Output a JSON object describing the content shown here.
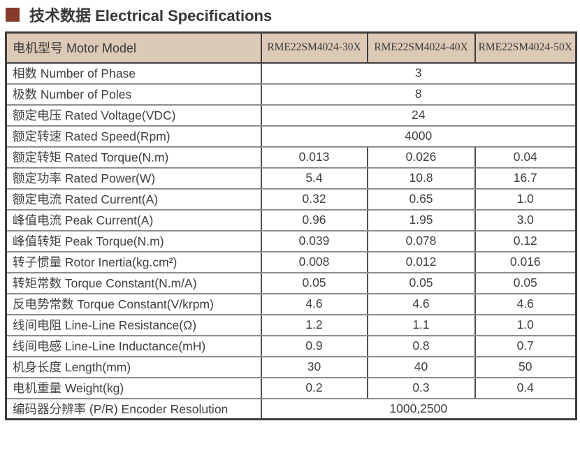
{
  "colors": {
    "bullet": "#873b2a",
    "header_bg": "#dccab7",
    "border_dark": "#3e3e3e",
    "border_gray": "#8d8d8d",
    "text": "#3e3e3e"
  },
  "title": {
    "text": "技术数据 Electrical Specifications"
  },
  "table": {
    "header": {
      "label": "电机型号 Motor Model",
      "models": [
        "RME22SM4024-30X",
        "RME22SM4024-40X",
        "RME22SM4024-50X"
      ]
    },
    "rows": [
      {
        "label": "相数 Number of Phase",
        "span": true,
        "values": [
          "3"
        ]
      },
      {
        "label": "极数 Number of Poles",
        "span": true,
        "values": [
          "8"
        ]
      },
      {
        "label": "额定电压 Rated Voltage(VDC)",
        "span": true,
        "values": [
          "24"
        ]
      },
      {
        "label": "额定转速 Rated Speed(Rpm)",
        "span": true,
        "values": [
          "4000"
        ]
      },
      {
        "label": "额定转矩 Rated Torque(N.m)",
        "span": false,
        "values": [
          "0.013",
          "0.026",
          "0.04"
        ]
      },
      {
        "label": "额定功率 Rated Power(W)",
        "span": false,
        "values": [
          "5.4",
          "10.8",
          "16.7"
        ]
      },
      {
        "label": "额定电流 Rated Current(A)",
        "span": false,
        "values": [
          "0.32",
          "0.65",
          "1.0"
        ]
      },
      {
        "label": "峰值电流 Peak Current(A)",
        "span": false,
        "values": [
          "0.96",
          "1.95",
          "3.0"
        ]
      },
      {
        "label": "峰值转矩 Peak Torque(N.m)",
        "span": false,
        "values": [
          "0.039",
          "0.078",
          "0.12"
        ]
      },
      {
        "label": "转子惯量 Rotor Inertia(kg.cm²)",
        "span": false,
        "values": [
          "0.008",
          "0.012",
          "0.016"
        ]
      },
      {
        "label": "转矩常数 Torque Constant(N.m/A)",
        "span": false,
        "values": [
          "0.05",
          "0.05",
          "0.05"
        ]
      },
      {
        "label": "反电势常数 Torque Constant(V/krpm)",
        "span": false,
        "values": [
          "4.6",
          "4.6",
          "4.6"
        ]
      },
      {
        "label": "线间电阻 Line-Line Resistance(Ω)",
        "span": false,
        "values": [
          "1.2",
          "1.1",
          "1.0"
        ]
      },
      {
        "label": "线间电感 Line-Line Inductance(mH)",
        "span": false,
        "values": [
          "0.9",
          "0.8",
          "0.7"
        ]
      },
      {
        "label": "机身长度 Length(mm)",
        "span": false,
        "values": [
          "30",
          "40",
          "50"
        ]
      },
      {
        "label": "电机重量 Weight(kg)",
        "span": false,
        "values": [
          "0.2",
          "0.3",
          "0.4"
        ]
      },
      {
        "label": "编码器分辨率 (P/R) Encoder Resolution",
        "span": true,
        "values": [
          "1000,2500"
        ]
      }
    ]
  }
}
